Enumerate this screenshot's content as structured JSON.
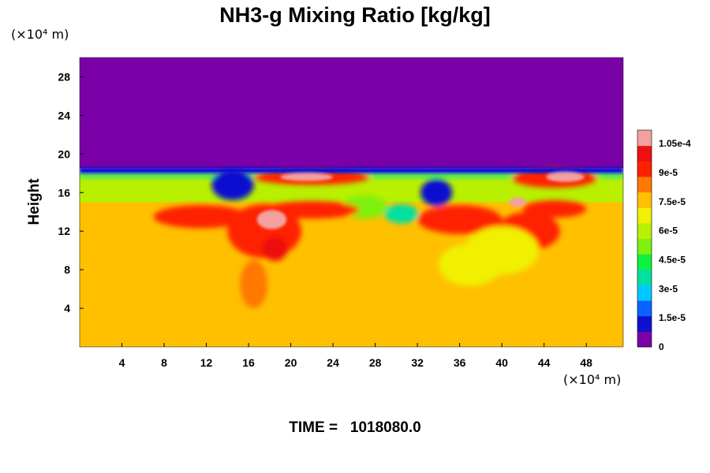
{
  "chart_data": {
    "type": "heatmap",
    "title": "NH3-g Mixing Ratio [kg/kg]",
    "ylabel": "Height",
    "xlabel": "",
    "x_unit": "(×10⁴ m)",
    "y_unit": "(×10⁴ m)",
    "xlim": [
      0,
      51.5
    ],
    "ylim": [
      0,
      30
    ],
    "x_ticks": [
      4,
      8,
      12,
      16,
      20,
      24,
      28,
      32,
      36,
      40,
      44,
      48
    ],
    "y_ticks": [
      4,
      8,
      12,
      16,
      20,
      24,
      28
    ],
    "colorbar": {
      "min": 0,
      "max": 0.000112,
      "ticks": [
        {
          "value": 0,
          "label": "0"
        },
        {
          "value": 1.5e-05,
          "label": "1.5e-5"
        },
        {
          "value": 3e-05,
          "label": "3e-5"
        },
        {
          "value": 4.5e-05,
          "label": "4.5e-5"
        },
        {
          "value": 6e-05,
          "label": "6e-5"
        },
        {
          "value": 7.5e-05,
          "label": "7.5e-5"
        },
        {
          "value": 9e-05,
          "label": "9e-5"
        },
        {
          "value": 0.000105,
          "label": "1.05e-4"
        }
      ],
      "colors": [
        "#7a00a8",
        "#1010d0",
        "#0a62ff",
        "#00c8ff",
        "#00e0a0",
        "#10f040",
        "#7ef010",
        "#b8f000",
        "#f0f000",
        "#ffc000",
        "#ff7800",
        "#ff2000",
        "#ee1010",
        "#f2a0a0"
      ]
    },
    "regions": {
      "upper_layer_value": 0,
      "upper_layer_range_height": [
        18.5,
        30
      ],
      "band_value": 6.2e-05,
      "band_range_height": [
        15,
        18
      ],
      "lower_value": 7.8e-05,
      "lower_range_height": [
        0,
        15
      ]
    }
  },
  "time_label": "TIME =",
  "time_value": "1018080.0"
}
